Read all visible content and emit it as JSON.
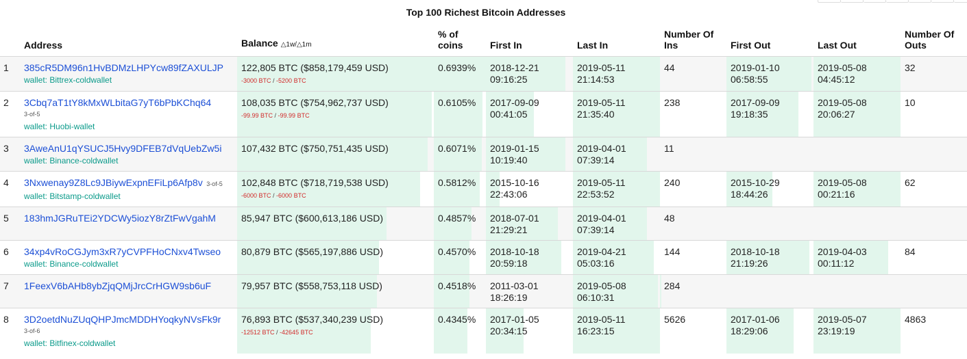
{
  "title": "Top 100 Richest Bitcoin Addresses",
  "colors": {
    "link": "#1c4fd6",
    "wallet": "#0a9a8a",
    "negative_change": "#d12a2a",
    "bar_fill": "#e2f6ec"
  },
  "headers": {
    "rank": "",
    "address": "Address",
    "balance": "Balance",
    "balance_delta": "△1w/△1m",
    "percent": "% of coins",
    "first_in": "First In",
    "last_in": "Last In",
    "num_ins": "Number Of Ins",
    "first_out": "First Out",
    "last_out": "Last Out",
    "num_outs": "Number Of Outs"
  },
  "rows": [
    {
      "rank": "1",
      "address": "385cR5DM96n1HvBDMzLHPYcw89fZAXULJP",
      "multisig": "",
      "multisig_inline": "",
      "wallet": "wallet: Bittrex-coldwallet",
      "balance": "122,805 BTC ($858,179,459 USD)",
      "change_1w": "-3000 BTC",
      "change_1m": "-5200 BTC",
      "percent": "0.6939%",
      "first_in": "2018-12-21 09:16:25",
      "last_in": "2019-05-11 21:14:53",
      "num_ins": "44",
      "first_out": "2019-01-10 06:58:55",
      "last_out": "2019-05-08 04:45:12",
      "num_outs": "32",
      "fill": {
        "balance": 1.0,
        "percent": 1.0,
        "first_in": 0.91,
        "last_in": 1.0,
        "num_ins": 0.0,
        "first_out": 0.98,
        "last_out": 1.0
      }
    },
    {
      "rank": "2",
      "address": "3Cbq7aT1tY8kMxWLbitaG7yT6bPbKChq64",
      "multisig": "3-of-5",
      "multisig_inline": "",
      "wallet": "wallet: Huobi-wallet",
      "balance": "108,035 BTC ($754,962,737 USD)",
      "change_1w": "-99.99 BTC",
      "change_1m": "-99.99 BTC",
      "percent": "0.6105%",
      "first_in": "2017-09-09 00:41:05",
      "last_in": "2019-05-11 21:35:40",
      "num_ins": "238",
      "first_out": "2017-09-09 19:18:35",
      "last_out": "2019-05-08 20:06:27",
      "num_outs": "10",
      "fill": {
        "balance": 0.99,
        "percent": 0.93,
        "first_in": 0.55,
        "last_in": 1.0,
        "num_ins": 0.0,
        "first_out": 0.83,
        "last_out": 1.0
      }
    },
    {
      "rank": "3",
      "address": "3AweAnU1qYSUCJ5Hvy9DFEB7dVqUebZw5i",
      "multisig": "",
      "multisig_inline": "",
      "wallet": "wallet: Binance-coldwallet",
      "balance": "107,432 BTC ($750,751,435 USD)",
      "change_1w": "",
      "change_1m": "",
      "percent": "0.6071%",
      "first_in": "2019-01-15 10:19:40",
      "last_in": "2019-04-01 07:39:14",
      "num_ins": "11",
      "first_out": "",
      "last_out": "",
      "num_outs": "",
      "fill": {
        "balance": 0.97,
        "percent": 0.92,
        "first_in": 0.91,
        "last_in": 0.85,
        "num_ins": 0.0,
        "first_out": 0.0,
        "last_out": 0.0
      }
    },
    {
      "rank": "4",
      "address": "3Nxwenay9Z8Lc9JBiywExpnEFiLp6Afp8v",
      "multisig": "",
      "multisig_inline": "3-of-5",
      "wallet": "wallet: Bitstamp-coldwallet",
      "balance": "102,848 BTC ($718,719,538 USD)",
      "change_1w": "-6000 BTC",
      "change_1m": "-6000 BTC",
      "percent": "0.5812%",
      "first_in": "2015-10-16 22:43:06",
      "last_in": "2019-05-11 22:53:52",
      "num_ins": "240",
      "first_out": "2015-10-29 18:44:26",
      "last_out": "2019-05-08 00:21:16",
      "num_outs": "62",
      "fill": {
        "balance": 0.93,
        "percent": 0.88,
        "first_in": 0.16,
        "last_in": 1.0,
        "num_ins": 0.0,
        "first_out": 0.53,
        "last_out": 1.0
      }
    },
    {
      "rank": "5",
      "address": "183hmJGRuTEi2YDCWy5iozY8rZtFwVgahM",
      "multisig": "",
      "multisig_inline": "",
      "wallet": "",
      "balance": "85,947 BTC ($600,613,186 USD)",
      "change_1w": "",
      "change_1m": "",
      "percent": "0.4857%",
      "first_in": "2018-07-01 21:29:21",
      "last_in": "2019-04-01 07:39:14",
      "num_ins": "48",
      "first_out": "",
      "last_out": "",
      "num_outs": "",
      "fill": {
        "balance": 0.76,
        "percent": 0.73,
        "first_in": 0.83,
        "last_in": 0.85,
        "num_ins": 0.0,
        "first_out": 0.0,
        "last_out": 0.0
      }
    },
    {
      "rank": "6",
      "address": "34xp4vRoCGJym3xR7yCVPFHoCNxv4Twseo",
      "multisig": "",
      "multisig_inline": "",
      "wallet": "wallet: Binance-coldwallet",
      "balance": "80,879 BTC ($565,197,886 USD)",
      "change_1w": "",
      "change_1m": "",
      "percent": "0.4570%",
      "first_in": "2018-10-18 20:59:18",
      "last_in": "2019-04-21 05:03:16",
      "num_ins": "144",
      "first_out": "2018-10-18 21:19:26",
      "last_out": "2019-04-03 00:11:12",
      "num_outs": "84",
      "fill": {
        "balance": 0.72,
        "percent": 0.69,
        "first_in": 0.87,
        "last_in": 0.93,
        "num_ins": 0.0,
        "first_out": 0.95,
        "last_out": 0.86
      }
    },
    {
      "rank": "7",
      "address": "1FeexV6bAHb8ybZjqQMjJrcCrHGW9sb6uF",
      "multisig": "",
      "multisig_inline": "",
      "wallet": "",
      "balance": "79,957 BTC ($558,753,118 USD)",
      "change_1w": "",
      "change_1m": "",
      "percent": "0.4518%",
      "first_in": "2011-03-01 18:26:19",
      "last_in": "2019-05-08 06:10:31",
      "num_ins": "284",
      "first_out": "",
      "last_out": "",
      "num_outs": "",
      "fill": {
        "balance": 0.71,
        "percent": 0.68,
        "first_in": 0.0,
        "last_in": 0.98,
        "num_ins": 0.02,
        "first_out": 0.0,
        "last_out": 0.0
      }
    },
    {
      "rank": "8",
      "address": "3D2oetdNuZUqQHPJmcMDDHYoqkyNVsFk9r",
      "multisig": "3-of-6",
      "multisig_inline": "",
      "wallet": "wallet: Bitfinex-coldwallet",
      "balance": "76,893 BTC ($537,340,239 USD)",
      "change_1w": "-12512 BTC",
      "change_1m": "-42645 BTC",
      "percent": "0.4345%",
      "first_in": "2017-01-05 20:34:15",
      "last_in": "2019-05-11 16:23:15",
      "num_ins": "5626",
      "first_out": "2017-01-06 18:29:06",
      "last_out": "2019-05-07 23:19:19",
      "num_outs": "4863",
      "fill": {
        "balance": 0.68,
        "percent": 0.65,
        "first_in": 0.43,
        "last_in": 1.0,
        "num_ins": 0.0,
        "first_out": 0.77,
        "last_out": 1.0
      }
    }
  ]
}
